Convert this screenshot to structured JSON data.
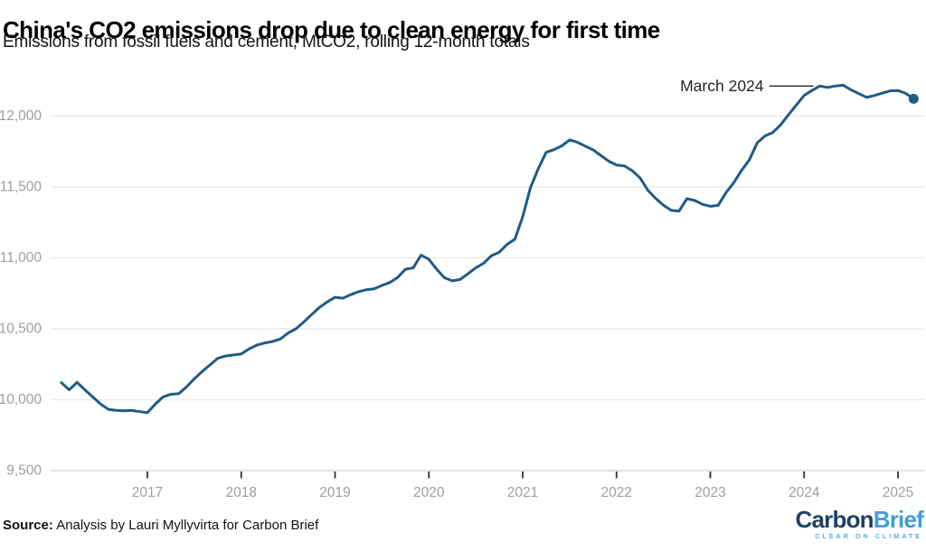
{
  "chart_data": {
    "type": "line",
    "title": "China's CO2 emissions drop due to clean energy for first time",
    "subtitle": "Emissions from fossil fuels and cement, MtCO2, rolling 12-month totals",
    "ylabel": "MtCO2",
    "xlabel": "",
    "ylim": [
      9500,
      12300
    ],
    "x_start": "2016-02",
    "x_end": "2025-03",
    "grid": "horizontal",
    "legend": "none",
    "yticks": [
      {
        "v": 12000,
        "label": "12,000"
      },
      {
        "v": 11500,
        "label": "11,500"
      },
      {
        "v": 11000,
        "label": "11,000"
      },
      {
        "v": 10500,
        "label": "10,500"
      },
      {
        "v": 10000,
        "label": "10,000"
      },
      {
        "v": 9500,
        "label": "9,500"
      }
    ],
    "xticks": [
      {
        "v": 2017,
        "label": "2017"
      },
      {
        "v": 2018,
        "label": "2018"
      },
      {
        "v": 2019,
        "label": "2019"
      },
      {
        "v": 2020,
        "label": "2020"
      },
      {
        "v": 2021,
        "label": "2021"
      },
      {
        "v": 2022,
        "label": "2022"
      },
      {
        "v": 2023,
        "label": "2023"
      },
      {
        "v": 2024,
        "label": "2024"
      },
      {
        "v": 2025,
        "label": "2025"
      }
    ],
    "annotation": {
      "label": "March 2024",
      "x": "2024-03",
      "y": 12212
    },
    "end_dot": true,
    "colors": {
      "line": "#1f5b87",
      "grid": "#ececec",
      "baseline": "#d8d8d8",
      "tick": "#333333",
      "axis_text": "#9e9e9e",
      "annotation_text": "#262626",
      "annotation_line": "#111111"
    },
    "series": [
      {
        "name": "CO2 emissions, MtCO2, rolling 12-month total",
        "color": "#1f5b87",
        "points": [
          [
            "2016-02",
            10120
          ],
          [
            "2016-03",
            10070
          ],
          [
            "2016-04",
            10122
          ],
          [
            "2016-05",
            10070
          ],
          [
            "2016-06",
            10020
          ],
          [
            "2016-07",
            9970
          ],
          [
            "2016-08",
            9932
          ],
          [
            "2016-09",
            9925
          ],
          [
            "2016-10",
            9922
          ],
          [
            "2016-11",
            9924
          ],
          [
            "2016-12",
            9916
          ],
          [
            "2017-01",
            9908
          ],
          [
            "2017-02",
            9968
          ],
          [
            "2017-03",
            10020
          ],
          [
            "2017-04",
            10038
          ],
          [
            "2017-05",
            10042
          ],
          [
            "2017-06",
            10090
          ],
          [
            "2017-07",
            10148
          ],
          [
            "2017-08",
            10198
          ],
          [
            "2017-09",
            10245
          ],
          [
            "2017-10",
            10292
          ],
          [
            "2017-11",
            10308
          ],
          [
            "2017-12",
            10315
          ],
          [
            "2018-01",
            10322
          ],
          [
            "2018-02",
            10358
          ],
          [
            "2018-03",
            10385
          ],
          [
            "2018-04",
            10400
          ],
          [
            "2018-05",
            10410
          ],
          [
            "2018-06",
            10428
          ],
          [
            "2018-07",
            10470
          ],
          [
            "2018-08",
            10500
          ],
          [
            "2018-09",
            10548
          ],
          [
            "2018-10",
            10600
          ],
          [
            "2018-11",
            10650
          ],
          [
            "2018-12",
            10690
          ],
          [
            "2019-01",
            10722
          ],
          [
            "2019-02",
            10716
          ],
          [
            "2019-03",
            10740
          ],
          [
            "2019-04",
            10762
          ],
          [
            "2019-05",
            10776
          ],
          [
            "2019-06",
            10782
          ],
          [
            "2019-07",
            10806
          ],
          [
            "2019-08",
            10826
          ],
          [
            "2019-09",
            10862
          ],
          [
            "2019-10",
            10920
          ],
          [
            "2019-11",
            10930
          ],
          [
            "2019-12",
            11020
          ],
          [
            "2020-01",
            10990
          ],
          [
            "2020-02",
            10920
          ],
          [
            "2020-03",
            10860
          ],
          [
            "2020-04",
            10838
          ],
          [
            "2020-05",
            10848
          ],
          [
            "2020-06",
            10888
          ],
          [
            "2020-07",
            10930
          ],
          [
            "2020-08",
            10962
          ],
          [
            "2020-09",
            11015
          ],
          [
            "2020-10",
            11040
          ],
          [
            "2020-11",
            11095
          ],
          [
            "2020-12",
            11132
          ],
          [
            "2021-01",
            11290
          ],
          [
            "2021-02",
            11495
          ],
          [
            "2021-03",
            11630
          ],
          [
            "2021-04",
            11744
          ],
          [
            "2021-05",
            11763
          ],
          [
            "2021-06",
            11790
          ],
          [
            "2021-07",
            11832
          ],
          [
            "2021-08",
            11815
          ],
          [
            "2021-09",
            11788
          ],
          [
            "2021-10",
            11762
          ],
          [
            "2021-11",
            11722
          ],
          [
            "2021-12",
            11682
          ],
          [
            "2022-01",
            11655
          ],
          [
            "2022-02",
            11649
          ],
          [
            "2022-03",
            11615
          ],
          [
            "2022-04",
            11565
          ],
          [
            "2022-05",
            11478
          ],
          [
            "2022-06",
            11420
          ],
          [
            "2022-07",
            11372
          ],
          [
            "2022-08",
            11335
          ],
          [
            "2022-09",
            11330
          ],
          [
            "2022-10",
            11418
          ],
          [
            "2022-11",
            11405
          ],
          [
            "2022-12",
            11378
          ],
          [
            "2023-01",
            11364
          ],
          [
            "2023-02",
            11370
          ],
          [
            "2023-03",
            11460
          ],
          [
            "2023-04",
            11530
          ],
          [
            "2023-05",
            11617
          ],
          [
            "2023-06",
            11692
          ],
          [
            "2023-07",
            11812
          ],
          [
            "2023-08",
            11860
          ],
          [
            "2023-09",
            11885
          ],
          [
            "2023-10",
            11938
          ],
          [
            "2023-11",
            12010
          ],
          [
            "2023-12",
            12078
          ],
          [
            "2024-01",
            12146
          ],
          [
            "2024-02",
            12180
          ],
          [
            "2024-03",
            12212
          ],
          [
            "2024-04",
            12202
          ],
          [
            "2024-05",
            12212
          ],
          [
            "2024-06",
            12218
          ],
          [
            "2024-07",
            12185
          ],
          [
            "2024-08",
            12158
          ],
          [
            "2024-09",
            12132
          ],
          [
            "2024-10",
            12145
          ],
          [
            "2024-11",
            12162
          ],
          [
            "2024-12",
            12178
          ],
          [
            "2025-01",
            12180
          ],
          [
            "2025-02",
            12160
          ],
          [
            "2025-03",
            12122
          ]
        ]
      }
    ]
  },
  "footer": {
    "source_label": "Source:",
    "source_text": " Analysis by Lauri Myllyvirta for Carbon Brief"
  },
  "logo": {
    "part1": "Carbon",
    "part2": "Brief",
    "tagline": "CLEAR ON CLIMATE",
    "navy": "#1d4064",
    "light_blue": "#3f9ed9",
    "tagline_blue": "#54a8dc"
  }
}
